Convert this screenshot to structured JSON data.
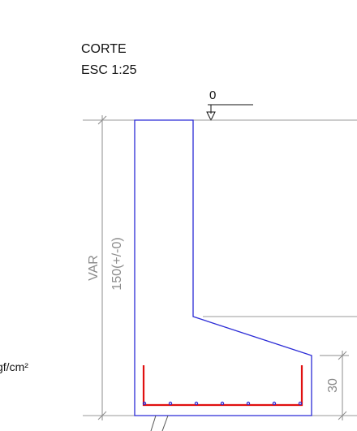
{
  "title": {
    "line1": "CORTE",
    "line2": "ESC 1:25"
  },
  "level_marker": "0",
  "dims": {
    "total_height": "VAR",
    "total_height_sub": "150(+/-0)",
    "base_thickness": "30"
  },
  "side_text": "gf/cm²",
  "colors": {
    "concrete_outline": "#2b2bd6",
    "rebar": "#e01010",
    "rebar_dots": "#2b2bd6",
    "dim_lines": "#8c8c8c",
    "text": "#111111"
  }
}
